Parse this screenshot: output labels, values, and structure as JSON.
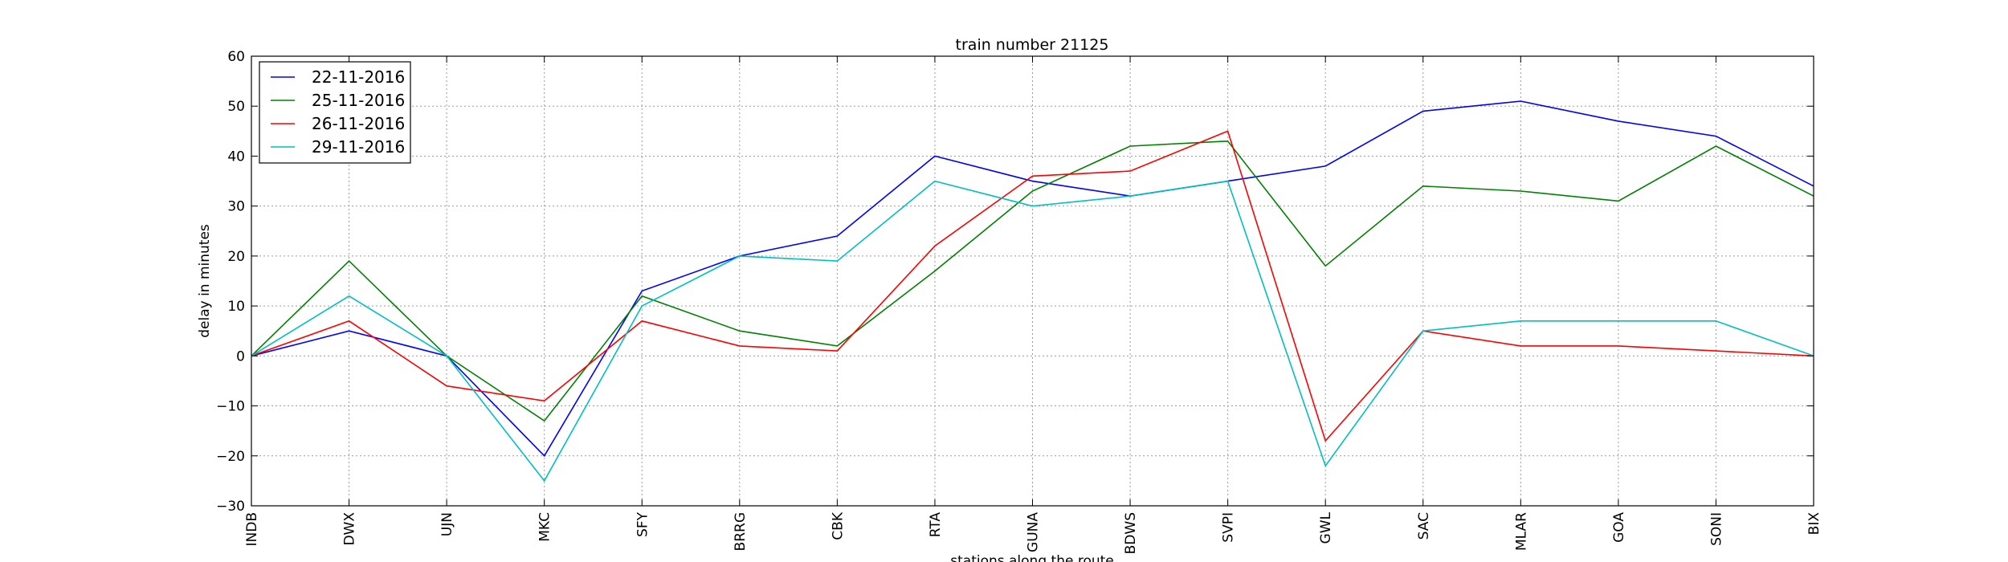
{
  "chart_data": {
    "type": "line",
    "title": "train number 21125",
    "xlabel": "stations along the route",
    "ylabel": "delay in minutes",
    "categories": [
      "INDB",
      "DWX",
      "UJN",
      "MKC",
      "SFY",
      "BRRG",
      "CBK",
      "RTA",
      "GUNA",
      "BDWS",
      "SVPI",
      "GWL",
      "SAC",
      "MLAR",
      "GOA",
      "SONI",
      "BIX"
    ],
    "ylim": [
      -30,
      60
    ],
    "yticks": [
      -30,
      -20,
      -10,
      0,
      10,
      20,
      30,
      40,
      50,
      60
    ],
    "grid": true,
    "legend_position": "top-left",
    "series": [
      {
        "name": "22-11-2016",
        "color": "#0000ff",
        "values": [
          0,
          5,
          0,
          -20,
          13,
          20,
          24,
          40,
          35,
          32,
          35,
          38,
          49,
          51,
          47,
          44,
          34
        ]
      },
      {
        "name": "25-11-2016",
        "color": "#008000",
        "values": [
          0,
          19,
          0,
          -13,
          12,
          5,
          2,
          17,
          33,
          42,
          43,
          18,
          34,
          33,
          31,
          42,
          32
        ]
      },
      {
        "name": "26-11-2016",
        "color": "#ff0000",
        "values": [
          0,
          7,
          -6,
          -9,
          7,
          2,
          1,
          22,
          36,
          37,
          45,
          -17,
          5,
          2,
          2,
          1,
          0
        ]
      },
      {
        "name": "29-11-2016",
        "color": "#00bfbf",
        "values": [
          0,
          12,
          0,
          -25,
          10,
          20,
          19,
          35,
          30,
          32,
          35,
          -22,
          5,
          7,
          7,
          7,
          0
        ]
      }
    ]
  }
}
